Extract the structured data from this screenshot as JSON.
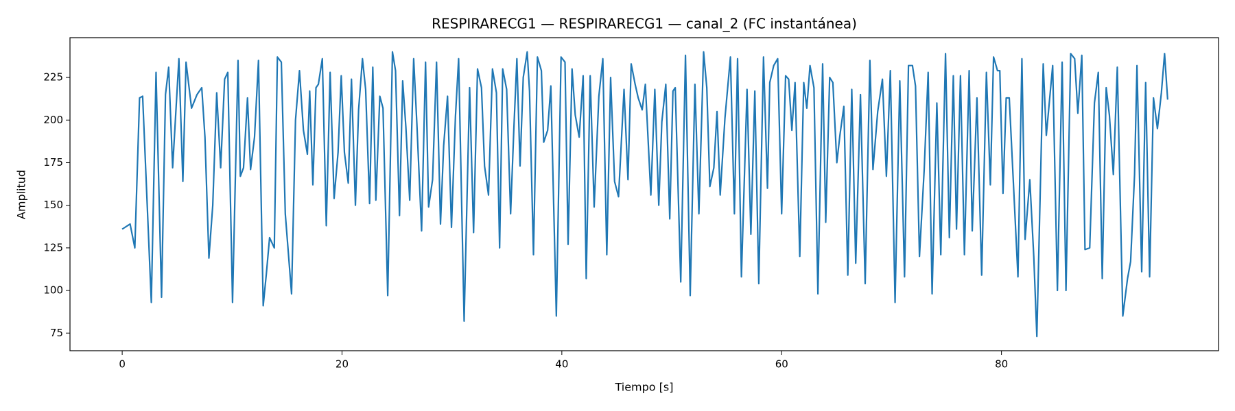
{
  "chart_data": {
    "type": "line",
    "title": "RESPIRARECG1 — RESPIRARECG1 — canal_2 (FC instantánea)",
    "x_label": "Tiempo [s]",
    "y_label": "Amplitud",
    "xlim": [
      -4.75,
      99.75
    ],
    "ylim": [
      64.65,
      248.35
    ],
    "xticks": [
      0,
      20,
      40,
      60,
      80
    ],
    "yticks": [
      75,
      100,
      125,
      150,
      175,
      200,
      225
    ],
    "grid": false,
    "series": [
      {
        "color": "#1f77b4",
        "x": [
          0,
          0.72,
          1.15,
          1.58,
          1.86,
          2.65,
          3.08,
          3.58,
          3.94,
          4.23,
          4.59,
          5.16,
          5.52,
          5.81,
          6.31,
          6.81,
          7.24,
          7.53,
          7.89,
          8.24,
          8.6,
          8.96,
          9.32,
          9.61,
          10.04,
          10.54,
          10.75,
          11.04,
          11.4,
          11.68,
          12.04,
          12.4,
          12.83,
          13.12,
          13.41,
          13.84,
          14.12,
          14.48,
          14.84,
          15.41,
          15.77,
          16.13,
          16.49,
          16.85,
          17.06,
          17.35,
          17.63,
          17.85,
          18.21,
          18.57,
          18.92,
          19.28,
          19.64,
          19.93,
          20.22,
          20.57,
          20.86,
          21.22,
          21.51,
          21.86,
          22.15,
          22.51,
          22.8,
          23.08,
          23.44,
          23.73,
          24.16,
          24.59,
          24.87,
          25.23,
          25.52,
          25.81,
          26.16,
          26.52,
          26.81,
          27.24,
          27.6,
          27.88,
          28.24,
          28.6,
          28.96,
          29.25,
          29.6,
          29.96,
          30.32,
          30.61,
          31.11,
          31.61,
          31.97,
          32.33,
          32.69,
          32.97,
          33.33,
          33.69,
          34.05,
          34.34,
          34.62,
          34.98,
          35.34,
          35.63,
          35.91,
          36.2,
          36.49,
          36.85,
          37.06,
          37.42,
          37.78,
          38.14,
          38.35,
          38.71,
          39,
          39.5,
          39.93,
          40.29,
          40.57,
          40.93,
          41.22,
          41.58,
          41.94,
          42.22,
          42.58,
          42.94,
          43.37,
          43.73,
          44.09,
          44.44,
          44.8,
          45.16,
          45.66,
          46.02,
          46.31,
          46.67,
          46.95,
          47.31,
          47.6,
          48.1,
          48.46,
          48.82,
          49.1,
          49.46,
          49.82,
          50.11,
          50.32,
          50.82,
          51.25,
          51.68,
          52.11,
          52.47,
          52.9,
          53.19,
          53.47,
          53.83,
          54.12,
          54.41,
          54.84,
          55.34,
          55.7,
          55.99,
          56.34,
          56.85,
          57.2,
          57.56,
          57.92,
          58.35,
          58.71,
          58.92,
          59.28,
          59.64,
          60,
          60.36,
          60.64,
          60.93,
          61.22,
          61.65,
          62.01,
          62.29,
          62.58,
          62.94,
          63.3,
          63.73,
          64.01,
          64.37,
          64.66,
          65.02,
          65.3,
          65.66,
          66.02,
          66.38,
          66.74,
          67.17,
          67.6,
          68.03,
          68.31,
          68.74,
          69.17,
          69.53,
          69.89,
          70.32,
          70.75,
          71.18,
          71.54,
          71.9,
          72.18,
          72.54,
          72.97,
          73.33,
          73.69,
          74.12,
          74.48,
          74.91,
          75.26,
          75.62,
          75.91,
          76.27,
          76.63,
          77.06,
          77.34,
          77.77,
          78.2,
          78.63,
          78.99,
          79.28,
          79.64,
          79.85,
          80.14,
          80.43,
          80.71,
          81.5,
          81.86,
          82.15,
          82.58,
          82.94,
          83.22,
          83.8,
          84.08,
          84.66,
          85.09,
          85.52,
          85.87,
          86.3,
          86.66,
          86.95,
          87.31,
          87.6,
          88.03,
          88.46,
          88.81,
          89.17,
          89.53,
          89.82,
          90.18,
          90.54,
          91.04,
          91.47,
          91.75,
          92.11,
          92.33,
          92.76,
          93.12,
          93.48,
          93.83,
          94.19,
          94.55,
          94.84,
          95.12
        ],
        "values": [
          136,
          139,
          125,
          213,
          214,
          93,
          228,
          96,
          215,
          231,
          172,
          236,
          164,
          234,
          207,
          215,
          219,
          190,
          119,
          150,
          216,
          172,
          224,
          228,
          93,
          235,
          167,
          172,
          213,
          171,
          190,
          235,
          91,
          110,
          131,
          125,
          237,
          234,
          145,
          98,
          200,
          229,
          194,
          180,
          217,
          162,
          219,
          221,
          236,
          138,
          228,
          154,
          181,
          226,
          181,
          163,
          224,
          150,
          206,
          236,
          218,
          151,
          231,
          153,
          214,
          207,
          97,
          240,
          229,
          144,
          223,
          196,
          153,
          236,
          198,
          135,
          234,
          149,
          165,
          234,
          139,
          185,
          214,
          137,
          202,
          236,
          82,
          219,
          134,
          230,
          219,
          173,
          156,
          230,
          216,
          125,
          230,
          218,
          145,
          194,
          236,
          173,
          225,
          240,
          217,
          121,
          237,
          229,
          187,
          194,
          220,
          85,
          237,
          234,
          127,
          230,
          203,
          190,
          226,
          107,
          226,
          149,
          214,
          236,
          121,
          225,
          164,
          155,
          218,
          165,
          233,
          221,
          213,
          206,
          221,
          156,
          218,
          150,
          199,
          221,
          142,
          217,
          219,
          105,
          238,
          97,
          221,
          145,
          240,
          219,
          161,
          172,
          205,
          156,
          201,
          237,
          145,
          236,
          108,
          218,
          133,
          217,
          104,
          237,
          160,
          222,
          232,
          236,
          145,
          226,
          224,
          194,
          222,
          120,
          222,
          207,
          232,
          219,
          98,
          233,
          140,
          225,
          222,
          175,
          191,
          208,
          109,
          218,
          116,
          215,
          104,
          235,
          171,
          205,
          224,
          167,
          229,
          93,
          223,
          108,
          232,
          232,
          220,
          120,
          171,
          228,
          98,
          210,
          121,
          239,
          131,
          226,
          136,
          226,
          121,
          229,
          135,
          213,
          109,
          228,
          162,
          237,
          229,
          229,
          157,
          213,
          213,
          108,
          236,
          130,
          165,
          120,
          73,
          233,
          191,
          232,
          100,
          234,
          100,
          239,
          236,
          204,
          238,
          124,
          125,
          210,
          228,
          107,
          219,
          203,
          168,
          231,
          85,
          107,
          117,
          168,
          232,
          111,
          222,
          108,
          213,
          195,
          216,
          239,
          212
        ]
      }
    ]
  }
}
